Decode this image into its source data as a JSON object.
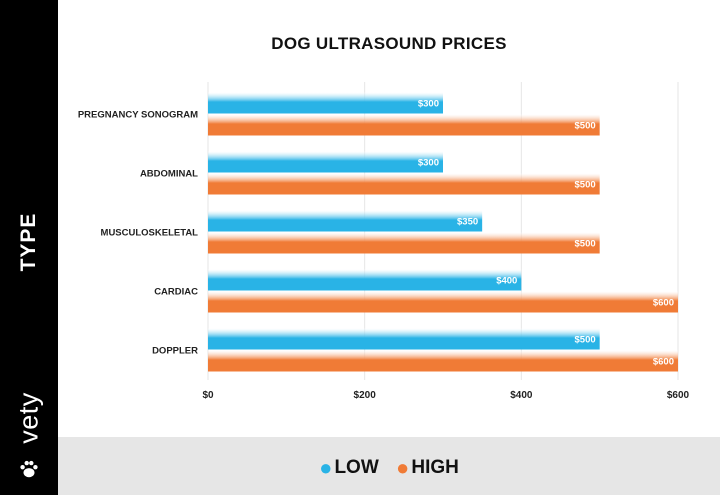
{
  "sidebar": {
    "axis_title": "TYPE",
    "brand": "vety",
    "brand_icon": "paw-icon"
  },
  "colors": {
    "low": "#29b3e6",
    "high": "#f07b36",
    "grid": "#e6e6e6",
    "legend_band": "#e6e6e6"
  },
  "chart_data": {
    "type": "bar",
    "orientation": "horizontal",
    "title": "DOG ULTRASOUND PRICES",
    "ylabel": "TYPE",
    "xlabel": "",
    "categories": [
      "PREGNANCY SONOGRAM",
      "ABDOMINAL",
      "MUSCULOSKELETAL",
      "CARDIAC",
      "DOPPLER"
    ],
    "series": [
      {
        "name": "LOW",
        "color": "#29b3e6",
        "values": [
          300,
          300,
          350,
          400,
          500
        ],
        "labels": [
          "$300",
          "$300",
          "$350",
          "$400",
          "$500"
        ]
      },
      {
        "name": "HIGH",
        "color": "#f07b36",
        "values": [
          500,
          500,
          500,
          600,
          600
        ],
        "labels": [
          "$500",
          "$500",
          "$500",
          "$600",
          "$600"
        ]
      }
    ],
    "xlim": [
      0,
      600
    ],
    "xticks": [
      0,
      200,
      400,
      600
    ],
    "xtick_labels": [
      "$0",
      "$200",
      "$400",
      "$600"
    ],
    "grid": true,
    "legend_position": "bottom"
  }
}
